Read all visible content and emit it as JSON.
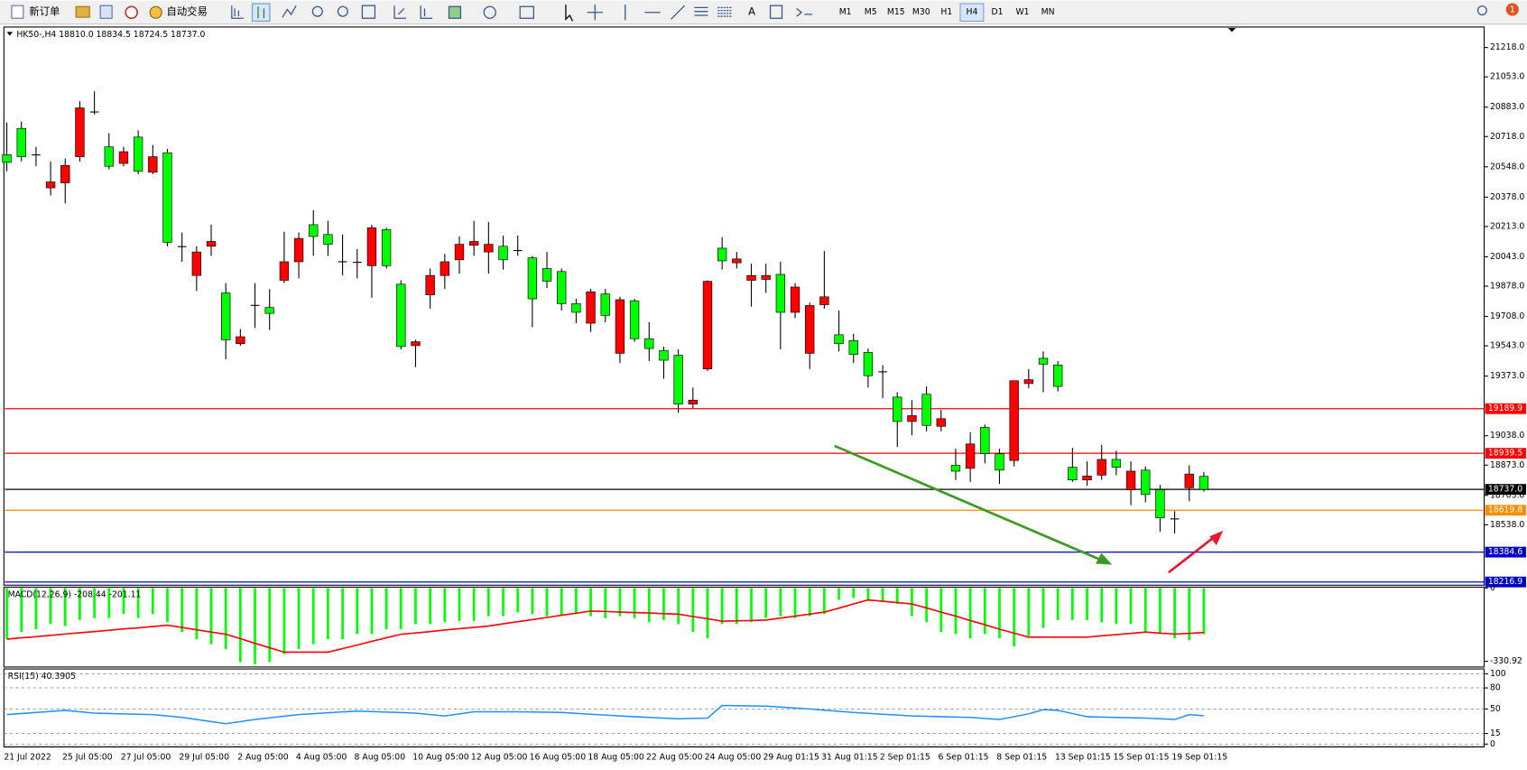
{
  "toolbar": {
    "buttons": [
      "新订单",
      "自动交易"
    ],
    "text_tool": "A",
    "timeframes": [
      "M1",
      "M5",
      "M15",
      "M30",
      "H1",
      "H4",
      "D1",
      "W1",
      "MN"
    ],
    "active": "H4",
    "notifications": 1
  },
  "chart_data": [
    {
      "type": "candlestick",
      "title": "HK50-,H4  18810.0 18834.5 18724.5 18737.0",
      "categories": [
        "21 Jul 2022",
        null,
        null,
        null,
        "25 Jul 05:00",
        null,
        null,
        null,
        "27 Jul 05:00",
        null,
        null,
        null,
        "29 Jul 05:00",
        null,
        null,
        null,
        "2 Aug 05:00",
        null,
        null,
        null,
        "4 Aug 05:00",
        null,
        null,
        null,
        "8 Aug 05:00",
        null,
        null,
        null,
        "10 Aug 05:00",
        null,
        null,
        null,
        "12 Aug 05:00",
        null,
        null,
        null,
        "16 Aug 05:00",
        null,
        null,
        null,
        "18 Aug 05:00",
        null,
        null,
        null,
        "22 Aug 05:00",
        null,
        null,
        null,
        "24 Aug 05:00",
        null,
        null,
        null,
        "29 Aug 01:15",
        null,
        null,
        null,
        "31 Aug 01:15",
        null,
        null,
        null,
        "2 Sep 01:15",
        null,
        null,
        null,
        "6 Sep 01:15",
        null,
        null,
        null,
        "8 Sep 01:15",
        null,
        null,
        null,
        "13 Sep 01:15",
        null,
        null,
        null,
        "15 Sep 01:15",
        null,
        null,
        null,
        "19 Sep 01:15",
        null,
        null
      ],
      "open": [
        20616,
        20764,
        20615,
        20430,
        20458,
        20605,
        20856,
        20660,
        20567,
        20715,
        20518,
        20627,
        20100,
        19938,
        20102,
        19840,
        19555,
        19770,
        19758,
        19911,
        20015,
        20223,
        20168,
        20015,
        20012,
        19993,
        20195,
        19889,
        19544,
        19829,
        19938,
        20026,
        20108,
        20070,
        20102,
        20078,
        20037,
        19977,
        19960,
        19780,
        19670,
        19834,
        19501,
        19796,
        19583,
        19517,
        19490,
        19216,
        19413,
        20091,
        20009,
        19911,
        19916,
        19944,
        19731,
        19501,
        19774,
        19605,
        19572,
        19506,
        19397,
        19255,
        19118,
        19271,
        19091,
        18872,
        18855,
        19085,
        18937,
        18899,
        19331,
        19473,
        19435,
        18861,
        18790,
        18817,
        18905,
        18735,
        18845,
        18735,
        18571,
        18746,
        18810
      ],
      "high": [
        20797,
        20802,
        20660,
        20578,
        20595,
        20917,
        20972,
        20737,
        20660,
        20753,
        20671,
        20649,
        20179,
        20102,
        20223,
        19895,
        19637,
        19895,
        19862,
        20184,
        20179,
        20305,
        20245,
        20168,
        20086,
        20223,
        20206,
        19911,
        19577,
        19977,
        20059,
        20157,
        20245,
        20239,
        20162,
        20162,
        20048,
        20070,
        19977,
        19807,
        19862,
        19862,
        19818,
        19807,
        19676,
        19539,
        19523,
        19309,
        19911,
        20152,
        20070,
        20004,
        20004,
        20015,
        19895,
        19785,
        20075,
        19741,
        19610,
        19528,
        19435,
        19282,
        19238,
        19315,
        19183,
        18965,
        19058,
        19101,
        18965,
        19347,
        19413,
        19512,
        19457,
        18970,
        18894,
        18987,
        18954,
        18894,
        18866,
        18762,
        18615,
        18872,
        18834.5
      ],
      "low": [
        20523,
        20578,
        20551,
        20387,
        20343,
        20578,
        20841,
        20534,
        20551,
        20507,
        20507,
        20102,
        20015,
        19851,
        20048,
        19468,
        19544,
        19643,
        19632,
        19895,
        19922,
        20048,
        20048,
        19938,
        19922,
        19813,
        19977,
        19523,
        19424,
        19752,
        19862,
        19949,
        20048,
        19949,
        19971,
        20048,
        19648,
        19867,
        19741,
        19670,
        19621,
        19676,
        19446,
        19566,
        19457,
        19358,
        19167,
        19194,
        19402,
        19971,
        19977,
        19763,
        19840,
        19523,
        19698,
        19413,
        19752,
        19512,
        19446,
        19309,
        19249,
        18976,
        19041,
        19063,
        19063,
        18790,
        18779,
        18883,
        18768,
        18866,
        19304,
        19282,
        19287,
        18779,
        18757,
        18790,
        18817,
        18648,
        18664,
        18500,
        18489,
        18670,
        18724.5
      ],
      "close": [
        20573,
        20605,
        20615,
        20463,
        20556,
        20879,
        20856,
        20551,
        20633,
        20523,
        20605,
        20124,
        20100,
        20070,
        20129,
        19577,
        19594,
        19770,
        19725,
        20015,
        20146,
        20157,
        20113,
        20015,
        20012,
        20206,
        19993,
        19539,
        19566,
        19938,
        20015,
        20113,
        20129,
        20113,
        20026,
        20078,
        19807,
        19906,
        19780,
        19731,
        19846,
        19714,
        19802,
        19583,
        19528,
        19462,
        19216,
        19238,
        19905,
        20020,
        20031,
        19938,
        19938,
        19731,
        19873,
        19769,
        19818,
        19555,
        19495,
        19375,
        19397,
        19118,
        19151,
        19096,
        19134,
        18839,
        18992,
        18937,
        18845,
        19347,
        19353,
        19440,
        19315,
        18790,
        18812,
        18905,
        18861,
        18839,
        18708,
        18577,
        18571,
        18823,
        18737
      ],
      "up_color": "#ff0000",
      "down_color": "#00ff00",
      "ylim": [
        18199,
        21333
      ],
      "yticks": [
        {
          "value": 21218,
          "label": "21218.0"
        },
        {
          "value": 21053,
          "label": "21053.0"
        },
        {
          "value": 20883,
          "label": "20883.0"
        },
        {
          "value": 20718,
          "label": "20718.0"
        },
        {
          "value": 20548,
          "label": "20548.0"
        },
        {
          "value": 20378,
          "label": "20378.0"
        },
        {
          "value": 20213,
          "label": "20213.0"
        },
        {
          "value": 20043,
          "label": "20043.0"
        },
        {
          "value": 19878,
          "label": "19878.0"
        },
        {
          "value": 19708,
          "label": "19708.0"
        },
        {
          "value": 19543,
          "label": "19543.0"
        },
        {
          "value": 19373,
          "label": "19373.0"
        },
        {
          "value": 19038,
          "label": "19038.0"
        },
        {
          "value": 18873,
          "label": "18873.0"
        },
        {
          "value": 18703,
          "label": "18703.0"
        },
        {
          "value": 18538,
          "label": "18538.0"
        }
      ],
      "price_lines": [
        {
          "value": 19189.9,
          "color": "#ff0000"
        },
        {
          "value": 18939.5,
          "color": "#ff0000"
        },
        {
          "value": {
            "value": 18737,
            "label": "18737.0"
          },
          "color": "#000000"
        },
        {
          "value": 18619.8,
          "color": "#ff8c00"
        },
        {
          "value": 18384.6,
          "color": "#0000cd"
        },
        {
          "value": 18216.9,
          "color": "#0000cd"
        }
      ]
    },
    {
      "type": "macd",
      "title": "MACD(12,26,9) -208.44 -201.11",
      "ylim": [
        -357,
        4
      ],
      "yticks": [
        0,
        -330.92
      ],
      "series": [
        {
          "kind": "bar",
          "color": "#00ff00",
          "values": [
            -231,
            -199,
            -186,
            -163,
            -172,
            -145,
            -136,
            -136,
            -118,
            -136,
            -118,
            -154,
            -199,
            -231,
            -254,
            -276,
            -335,
            -344,
            -335,
            -299,
            -276,
            -254,
            -231,
            -231,
            -208,
            -208,
            -186,
            -186,
            -163,
            -163,
            -154,
            -149,
            -149,
            -127,
            -127,
            -109,
            -118,
            -127,
            -127,
            -118,
            -127,
            -136,
            -127,
            -136,
            -154,
            -145,
            -163,
            -199,
            -227,
            -163,
            -163,
            -154,
            -136,
            -127,
            -136,
            -127,
            -118,
            -54,
            -45,
            -54,
            -63,
            -72,
            -127,
            -154,
            -199,
            -208,
            -227,
            -208,
            -227,
            -263,
            -217,
            -181,
            -145,
            -145,
            -145,
            -154,
            -163,
            -163,
            -199,
            -208,
            -227,
            -236,
            -208.44
          ]
        },
        {
          "kind": "line",
          "color": "#ff0000",
          "values": [
            -231,
            -225,
            -220,
            -214,
            -208,
            -202,
            -197,
            -191,
            -185,
            -180,
            -174,
            -168,
            -178,
            -189,
            -199,
            -209,
            -229,
            -250,
            -270,
            -290,
            -290,
            -290,
            -290,
            -274,
            -258,
            -241,
            -225,
            -209,
            -203,
            -197,
            -190,
            -184,
            -178,
            -172,
            -162,
            -152,
            -143,
            -133,
            -123,
            -114,
            -104,
            -106,
            -109,
            -111,
            -113,
            -116,
            -118,
            -129,
            -139,
            -150,
            -148,
            -147,
            -145,
            -136,
            -127,
            -118,
            -109,
            -91,
            -72,
            -54,
            -60,
            -66,
            -72,
            -90,
            -109,
            -127,
            -147,
            -166,
            -186,
            -204,
            -222,
            -222,
            -222,
            -222,
            -222,
            -216,
            -211,
            -205,
            -199,
            -204,
            -208,
            -205,
            -201.11
          ]
        }
      ]
    },
    {
      "type": "line",
      "title": "RSI(15) 40.3905",
      "ylim": [
        -4,
        107
      ],
      "yticks": [
        100,
        80,
        50,
        15,
        0
      ],
      "grid": true,
      "series": [
        {
          "color": "#1e90ff",
          "values": [
            42,
            43.5,
            45,
            46.5,
            48,
            46,
            44,
            43.5,
            43,
            42.5,
            42,
            40,
            38,
            35,
            32,
            29,
            32,
            35,
            37.3,
            39.7,
            42,
            43.3,
            44.5,
            45.8,
            47,
            46.3,
            45.5,
            44.8,
            44,
            42,
            40,
            43,
            46,
            46,
            46,
            46,
            45.7,
            45.3,
            45,
            43.8,
            42.5,
            41.3,
            40,
            39,
            38,
            37,
            36,
            36.5,
            37,
            55,
            54.7,
            54.3,
            54,
            52.7,
            51.3,
            50,
            48.3,
            46.7,
            45,
            43.8,
            42.5,
            41.3,
            40,
            39.5,
            39,
            38.5,
            38,
            36.5,
            35,
            39,
            43,
            49,
            48,
            43.5,
            39,
            38.5,
            38,
            37.5,
            37,
            36,
            35,
            42,
            40.3905
          ]
        }
      ]
    }
  ]
}
